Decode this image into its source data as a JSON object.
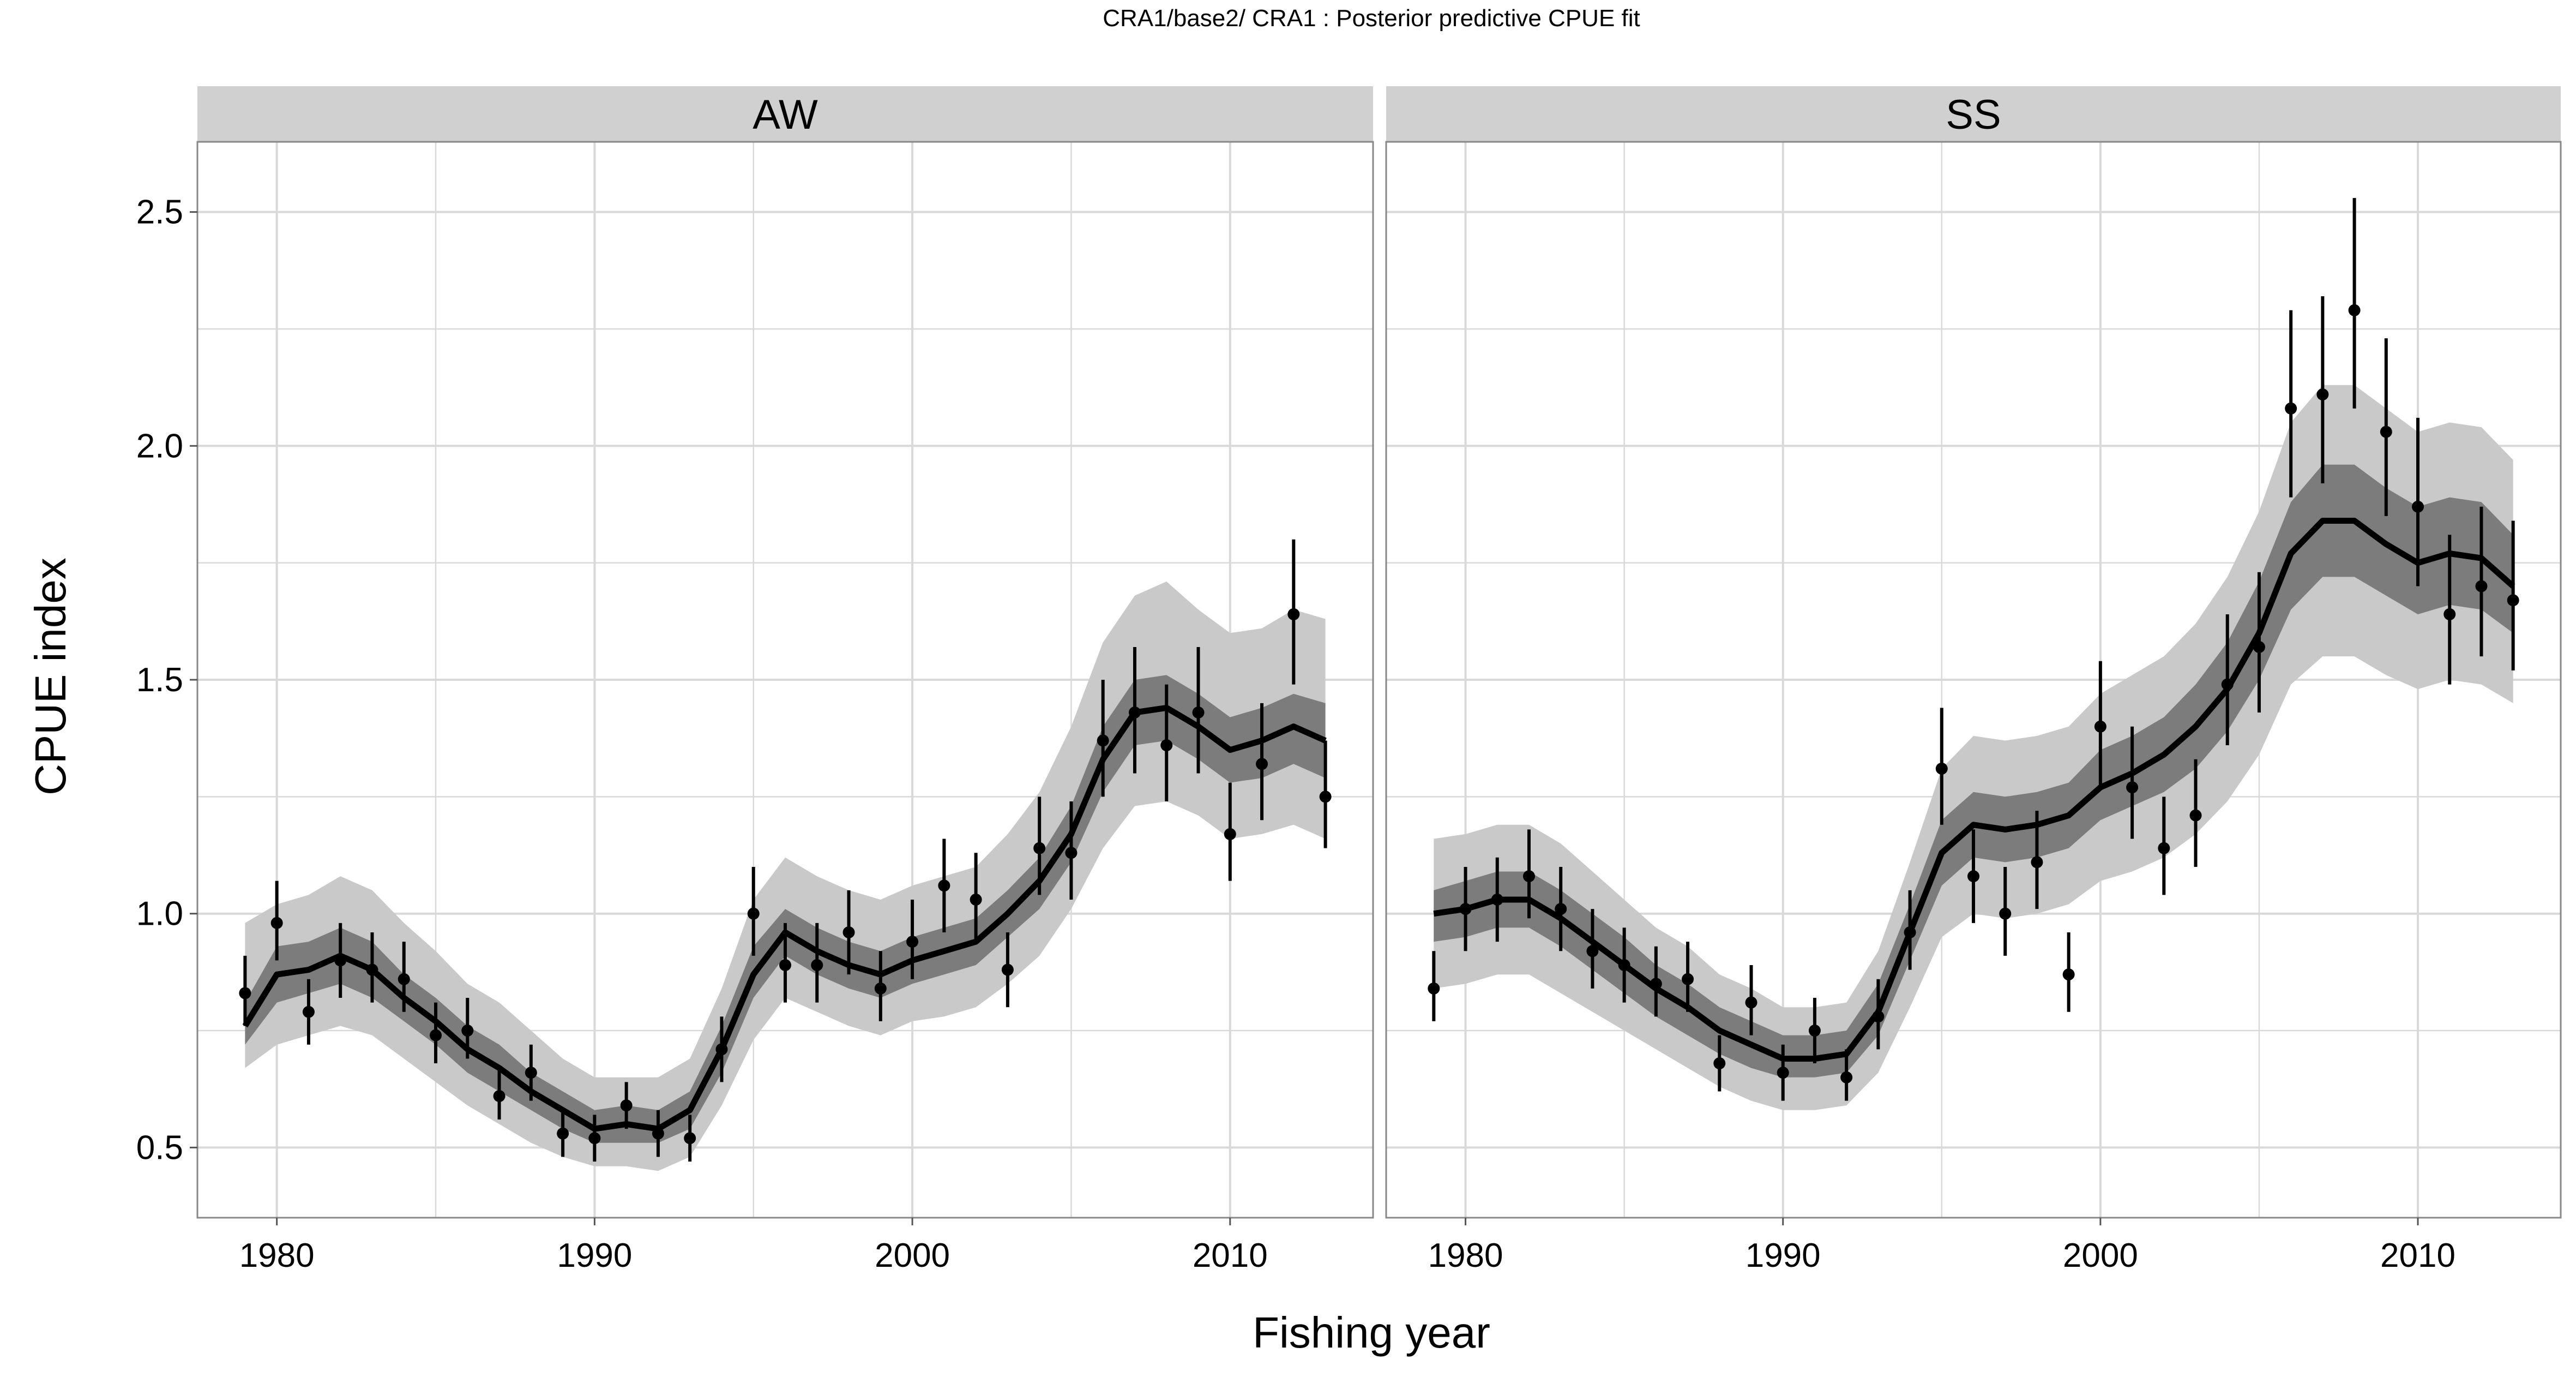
{
  "chart_data": {
    "type": "line",
    "title": "CRA1/base2/   CRA1 : Posterior predictive CPUE fit",
    "xlabel": "Fishing year",
    "ylabel": "CPUE index",
    "xlim": [
      1977.5,
      2014.5
    ],
    "ylim": [
      0.35,
      2.65
    ],
    "x_ticks": [
      1980,
      1990,
      2000,
      2010
    ],
    "x_tick_labels": [
      "1980",
      "1990",
      "2000",
      "2010"
    ],
    "y_ticks": [
      0.5,
      1.0,
      1.5,
      2.0,
      2.5
    ],
    "y_tick_labels": [
      "0.5",
      "1.0",
      "1.5",
      "2.0",
      "2.5"
    ],
    "grid": true,
    "colors": {
      "panel_border": "#888888",
      "strip_fill": "#d0d0d0",
      "grid_line": "#d9d9d9",
      "outer_band": "#c9c9c9",
      "inner_band": "#7c7c7c",
      "median_line": "#000000",
      "points": "#000000"
    },
    "panels": [
      {
        "name": "AW",
        "years": [
          1979,
          1980,
          1981,
          1982,
          1983,
          1984,
          1985,
          1986,
          1987,
          1988,
          1989,
          1990,
          1991,
          1992,
          1993,
          1994,
          1995,
          1996,
          1997,
          1998,
          1999,
          2000,
          2001,
          2002,
          2003,
          2004,
          2005,
          2006,
          2007,
          2008,
          2009,
          2010,
          2011,
          2012,
          2013
        ],
        "median": [
          0.76,
          0.87,
          0.88,
          0.91,
          0.88,
          0.82,
          0.77,
          0.71,
          0.67,
          0.62,
          0.58,
          0.54,
          0.55,
          0.54,
          0.58,
          0.71,
          0.87,
          0.96,
          0.92,
          0.89,
          0.87,
          0.9,
          0.92,
          0.94,
          1.0,
          1.07,
          1.17,
          1.33,
          1.43,
          1.44,
          1.4,
          1.35,
          1.37,
          1.4,
          1.37
        ],
        "inner_lower": [
          0.72,
          0.81,
          0.83,
          0.85,
          0.82,
          0.77,
          0.72,
          0.66,
          0.62,
          0.58,
          0.54,
          0.51,
          0.51,
          0.51,
          0.54,
          0.66,
          0.82,
          0.91,
          0.87,
          0.84,
          0.82,
          0.85,
          0.87,
          0.89,
          0.95,
          1.01,
          1.11,
          1.26,
          1.36,
          1.37,
          1.33,
          1.28,
          1.29,
          1.32,
          1.29
        ],
        "inner_upper": [
          0.81,
          0.93,
          0.94,
          0.97,
          0.94,
          0.87,
          0.82,
          0.76,
          0.72,
          0.66,
          0.62,
          0.58,
          0.59,
          0.58,
          0.62,
          0.76,
          0.93,
          1.01,
          0.97,
          0.94,
          0.92,
          0.95,
          0.97,
          0.99,
          1.05,
          1.12,
          1.23,
          1.4,
          1.5,
          1.51,
          1.47,
          1.42,
          1.44,
          1.47,
          1.45
        ],
        "outer_lower": [
          0.67,
          0.72,
          0.74,
          0.76,
          0.74,
          0.69,
          0.64,
          0.59,
          0.55,
          0.51,
          0.48,
          0.46,
          0.46,
          0.45,
          0.48,
          0.59,
          0.73,
          0.82,
          0.79,
          0.76,
          0.74,
          0.77,
          0.78,
          0.8,
          0.85,
          0.91,
          1.01,
          1.14,
          1.23,
          1.24,
          1.21,
          1.16,
          1.17,
          1.19,
          1.16
        ],
        "outer_upper": [
          0.98,
          1.02,
          1.04,
          1.08,
          1.05,
          0.98,
          0.92,
          0.85,
          0.81,
          0.75,
          0.69,
          0.65,
          0.65,
          0.65,
          0.69,
          0.84,
          1.03,
          1.12,
          1.08,
          1.05,
          1.03,
          1.06,
          1.08,
          1.1,
          1.17,
          1.26,
          1.4,
          1.58,
          1.68,
          1.71,
          1.65,
          1.6,
          1.61,
          1.65,
          1.63
        ],
        "observed": [
          0.83,
          0.98,
          0.79,
          0.9,
          0.88,
          0.86,
          0.74,
          0.75,
          0.61,
          0.66,
          0.53,
          0.52,
          0.59,
          0.53,
          0.52,
          0.71,
          1.0,
          0.89,
          0.89,
          0.96,
          0.84,
          0.94,
          1.06,
          1.03,
          0.88,
          1.14,
          1.13,
          1.37,
          1.43,
          1.36,
          1.43,
          1.17,
          1.32,
          1.64,
          1.25
        ],
        "obs_lower": [
          0.76,
          0.9,
          0.72,
          0.82,
          0.81,
          0.79,
          0.68,
          0.69,
          0.56,
          0.6,
          0.48,
          0.47,
          0.54,
          0.48,
          0.47,
          0.64,
          0.91,
          0.81,
          0.81,
          0.87,
          0.77,
          0.86,
          0.96,
          0.94,
          0.8,
          1.04,
          1.03,
          1.25,
          1.3,
          1.24,
          1.3,
          1.07,
          1.2,
          1.49,
          1.14
        ],
        "obs_upper": [
          0.91,
          1.07,
          0.86,
          0.98,
          0.96,
          0.94,
          0.81,
          0.82,
          0.67,
          0.72,
          0.58,
          0.57,
          0.64,
          0.58,
          0.57,
          0.78,
          1.1,
          0.98,
          0.98,
          1.05,
          0.92,
          1.03,
          1.16,
          1.13,
          0.96,
          1.25,
          1.24,
          1.5,
          1.57,
          1.49,
          1.57,
          1.28,
          1.45,
          1.8,
          1.37
        ]
      },
      {
        "name": "SS",
        "years": [
          1979,
          1980,
          1981,
          1982,
          1983,
          1984,
          1985,
          1986,
          1987,
          1988,
          1989,
          1990,
          1991,
          1992,
          1993,
          1994,
          1995,
          1996,
          1997,
          1998,
          1999,
          2000,
          2001,
          2002,
          2003,
          2004,
          2005,
          2006,
          2007,
          2008,
          2009,
          2010,
          2011,
          2012,
          2013
        ],
        "median": [
          1.0,
          1.01,
          1.03,
          1.03,
          0.99,
          0.94,
          0.89,
          0.84,
          0.8,
          0.75,
          0.72,
          0.69,
          0.69,
          0.7,
          0.79,
          0.96,
          1.13,
          1.19,
          1.18,
          1.19,
          1.21,
          1.27,
          1.3,
          1.34,
          1.4,
          1.48,
          1.6,
          1.77,
          1.84,
          1.84,
          1.79,
          1.75,
          1.77,
          1.76,
          1.7
        ],
        "inner_lower": [
          0.94,
          0.95,
          0.97,
          0.97,
          0.93,
          0.88,
          0.83,
          0.78,
          0.74,
          0.7,
          0.67,
          0.65,
          0.65,
          0.66,
          0.74,
          0.9,
          1.06,
          1.12,
          1.11,
          1.12,
          1.14,
          1.2,
          1.23,
          1.26,
          1.31,
          1.39,
          1.5,
          1.65,
          1.72,
          1.72,
          1.68,
          1.64,
          1.66,
          1.65,
          1.6
        ],
        "inner_upper": [
          1.05,
          1.07,
          1.09,
          1.09,
          1.05,
          1.0,
          0.95,
          0.89,
          0.85,
          0.8,
          0.77,
          0.74,
          0.74,
          0.75,
          0.85,
          1.02,
          1.2,
          1.26,
          1.25,
          1.26,
          1.28,
          1.35,
          1.38,
          1.42,
          1.49,
          1.58,
          1.71,
          1.88,
          1.96,
          1.96,
          1.91,
          1.87,
          1.89,
          1.88,
          1.81
        ],
        "outer_lower": [
          0.84,
          0.85,
          0.87,
          0.87,
          0.83,
          0.79,
          0.75,
          0.71,
          0.67,
          0.63,
          0.6,
          0.58,
          0.58,
          0.59,
          0.66,
          0.8,
          0.95,
          1.0,
          0.99,
          1.0,
          1.02,
          1.07,
          1.09,
          1.12,
          1.17,
          1.24,
          1.34,
          1.49,
          1.55,
          1.55,
          1.51,
          1.48,
          1.5,
          1.49,
          1.45
        ],
        "outer_upper": [
          1.16,
          1.17,
          1.19,
          1.19,
          1.15,
          1.09,
          1.03,
          0.97,
          0.93,
          0.87,
          0.84,
          0.8,
          0.8,
          0.81,
          0.92,
          1.11,
          1.31,
          1.38,
          1.37,
          1.38,
          1.4,
          1.47,
          1.51,
          1.55,
          1.62,
          1.72,
          1.86,
          2.05,
          2.13,
          2.13,
          2.08,
          2.03,
          2.05,
          2.04,
          1.97
        ],
        "observed": [
          0.84,
          1.01,
          1.03,
          1.08,
          1.01,
          0.92,
          0.89,
          0.85,
          0.86,
          0.68,
          0.81,
          0.66,
          0.75,
          0.65,
          0.78,
          0.96,
          1.31,
          1.08,
          1.0,
          1.11,
          0.87,
          1.4,
          1.27,
          1.14,
          1.21,
          1.49,
          1.57,
          2.08,
          2.11,
          2.29,
          2.03,
          1.87,
          1.64,
          1.7,
          1.67
        ],
        "obs_lower": [
          0.77,
          0.92,
          0.94,
          0.99,
          0.92,
          0.84,
          0.81,
          0.78,
          0.79,
          0.62,
          0.74,
          0.6,
          0.68,
          0.6,
          0.71,
          0.88,
          1.19,
          0.98,
          0.91,
          1.01,
          0.79,
          1.27,
          1.16,
          1.04,
          1.1,
          1.36,
          1.43,
          1.89,
          1.92,
          2.08,
          1.85,
          1.7,
          1.49,
          1.55,
          1.52
        ],
        "obs_upper": [
          0.92,
          1.1,
          1.12,
          1.18,
          1.1,
          1.01,
          0.97,
          0.93,
          0.94,
          0.74,
          0.89,
          0.72,
          0.82,
          0.71,
          0.86,
          1.05,
          1.44,
          1.18,
          1.1,
          1.22,
          0.96,
          1.54,
          1.4,
          1.25,
          1.33,
          1.64,
          1.73,
          2.29,
          2.32,
          2.53,
          2.23,
          2.06,
          1.81,
          1.87,
          1.84
        ]
      }
    ]
  }
}
